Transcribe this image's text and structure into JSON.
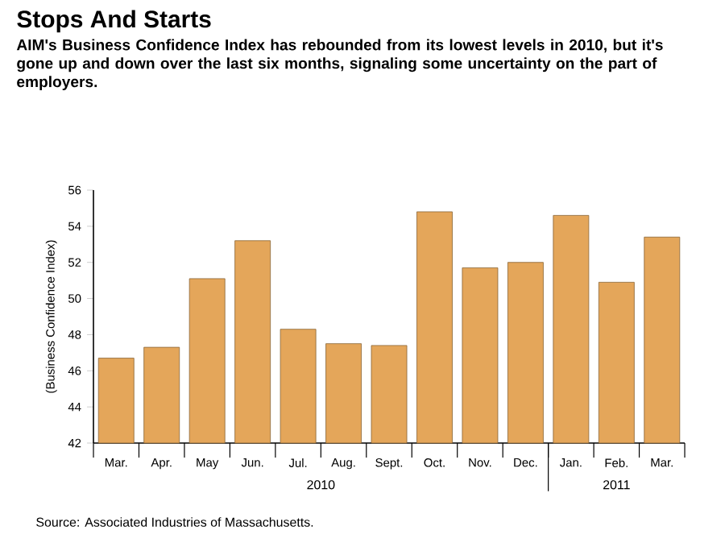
{
  "chart_data": {
    "type": "bar",
    "title": "Stops And Starts",
    "subtitle": "AIM's Business Confidence Index has rebounded from its lowest levels in 2010, but it's gone up and down over the last six months, signaling some uncertainty on the part of employers.",
    "ylabel": "(Business Confidence Index)",
    "categories": [
      "Mar.",
      "Apr.",
      "May",
      "Jun.",
      "Jul.",
      "Aug.",
      "Sept.",
      "Oct.",
      "Nov.",
      "Dec.",
      "Jan.",
      "Feb.",
      "Mar."
    ],
    "values": [
      46.7,
      47.3,
      51.1,
      53.2,
      48.3,
      47.5,
      47.4,
      54.8,
      51.7,
      52.0,
      54.6,
      50.9,
      53.4
    ],
    "color": "#e4a65a",
    "ylim": [
      42,
      56
    ],
    "yticks": [
      42,
      44,
      46,
      48,
      50,
      52,
      54,
      56
    ],
    "annotations": [
      "2010",
      "2011",
      "Source: Associated Industries of Massachusetts."
    ]
  }
}
